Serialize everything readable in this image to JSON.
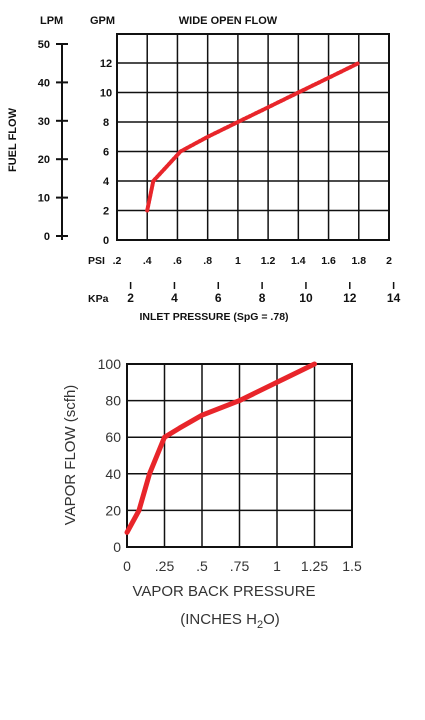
{
  "colors": {
    "curve": "#e8252a",
    "grid": "#111111",
    "text": "#111111"
  },
  "chart_data": [
    {
      "type": "line",
      "title": "WIDE OPEN FLOW",
      "ylabel": "FUEL FLOW",
      "left_axes": {
        "lpm_label": "LPM",
        "lpm_ticks": [
          "50",
          "40",
          "30",
          "20",
          "10",
          "0"
        ],
        "gpm_label": "GPM",
        "gpm_ticks": [
          "12",
          "10",
          "8",
          "6",
          "4",
          "2",
          "0"
        ]
      },
      "x_axes": {
        "psi_label": "PSI",
        "psi_ticks": [
          ".2",
          ".4",
          ".6",
          ".8",
          "1",
          "1.2",
          "1.4",
          "1.6",
          "1.8",
          "2"
        ],
        "kpa_label": "KPa",
        "kpa_ticks": [
          "2",
          "4",
          "6",
          "8",
          "10",
          "12",
          "14"
        ],
        "xlabel": "INLET PRESSURE (SpG = .78)"
      },
      "xlim": [
        0.2,
        2.0
      ],
      "ylim_gpm": [
        0,
        13
      ],
      "grid": true,
      "series": [
        {
          "x": [
            0.4,
            0.44,
            0.53,
            0.62,
            0.8,
            1.0,
            1.2,
            1.4,
            1.6,
            1.8
          ],
          "y": [
            2.0,
            4.0,
            5.0,
            6.0,
            7.0,
            8.0,
            9.0,
            10.0,
            11.0,
            12.0
          ]
        }
      ]
    },
    {
      "type": "line",
      "ylabel": "VAPOR FLOW (scfh)",
      "xlabel_line1": "VAPOR BACK PRESSURE",
      "xlabel_line2_prefix": "(INCHES H",
      "xlabel_line2_sub": "2",
      "xlabel_line2_suffix": "O)",
      "y_ticks": [
        "100",
        "80",
        "60",
        "40",
        "20",
        "0"
      ],
      "x_ticks": [
        "0",
        ".25",
        ".5",
        ".75",
        "1",
        "1.25",
        "1.5"
      ],
      "xlim": [
        0,
        1.5
      ],
      "ylim": [
        0,
        100
      ],
      "grid": true,
      "series": [
        {
          "x": [
            0,
            0.08,
            0.15,
            0.25,
            0.35,
            0.5,
            0.75,
            1.0,
            1.25
          ],
          "y": [
            8,
            20,
            40,
            60,
            65,
            72,
            80,
            90,
            100
          ]
        }
      ]
    }
  ]
}
